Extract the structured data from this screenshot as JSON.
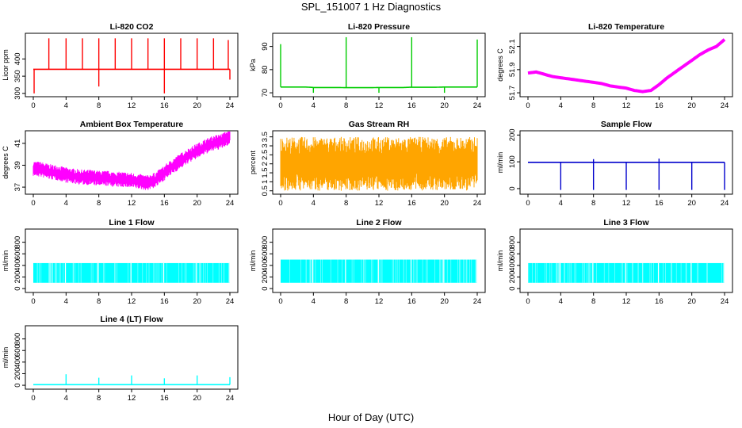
{
  "title": "SPL_151007  1 Hz Diagnostics",
  "xlabel": "Hour of Day (UTC)",
  "chart_data": [
    {
      "type": "line",
      "title": "Li-820 CO2",
      "ylabel": "Licor ppm",
      "color": "#ff0000",
      "xlim": [
        0,
        24
      ],
      "ylim": [
        295,
        470
      ],
      "xticks": [
        0,
        4,
        8,
        12,
        16,
        20,
        24
      ],
      "yticks": [
        300,
        350,
        400
      ],
      "series": [
        {
          "kind": "spiky",
          "x": [
            0,
            0.5,
            1,
            1.5,
            2,
            2.5,
            3,
            3.5,
            4,
            4.5,
            5,
            5.5,
            6,
            6.5,
            7,
            7.5,
            8,
            8.5,
            9,
            9.5,
            10,
            10.5,
            11,
            11.5,
            12,
            12.5,
            13,
            13.5,
            14,
            14.5,
            15,
            15.5,
            16,
            16.5,
            17,
            17.5,
            18,
            18.5,
            19,
            19.5,
            20,
            20.5,
            21,
            21.5,
            22,
            22.5,
            23,
            23.5,
            24
          ],
          "y": [
            370,
            370,
            370,
            370,
            370,
            370,
            370,
            370,
            370,
            370,
            370,
            370,
            370,
            370,
            370,
            370,
            370,
            370,
            370,
            370,
            370,
            370,
            370,
            370,
            370,
            370,
            370,
            370,
            370,
            370,
            370,
            370,
            370,
            370,
            370,
            370,
            370,
            370,
            370,
            370,
            370,
            370,
            370,
            370,
            370,
            370,
            370,
            370,
            370
          ],
          "spikes_up": [
            [
              1.9,
              460
            ],
            [
              4.0,
              460
            ],
            [
              6.0,
              460
            ],
            [
              8.0,
              460
            ],
            [
              10.0,
              460
            ],
            [
              12.0,
              460
            ],
            [
              14.0,
              460
            ],
            [
              16.0,
              460
            ],
            [
              18.0,
              460
            ],
            [
              20.0,
              460
            ],
            [
              22.0,
              460
            ],
            [
              23.8,
              455
            ]
          ],
          "spikes_down": [
            [
              0.1,
              300
            ],
            [
              8.0,
              320
            ],
            [
              16.0,
              300
            ],
            [
              24.0,
              340
            ]
          ]
        }
      ]
    },
    {
      "type": "line",
      "title": "Li-820 Pressure",
      "ylabel": "kPa",
      "color": "#00cc00",
      "xlim": [
        0,
        24
      ],
      "ylim": [
        69,
        95
      ],
      "xticks": [
        0,
        4,
        8,
        12,
        16,
        20,
        24
      ],
      "yticks": [
        70,
        80,
        90
      ],
      "series": [
        {
          "kind": "spiky",
          "x": [
            0,
            1,
            2,
            3,
            4,
            5,
            6,
            7,
            8,
            9,
            10,
            11,
            12,
            13,
            14,
            15,
            16,
            17,
            18,
            19,
            20,
            21,
            22,
            23,
            24
          ],
          "y": [
            72.5,
            72.5,
            72.5,
            72.5,
            72.3,
            72.3,
            72.3,
            72.3,
            72.2,
            72.2,
            72.2,
            72.2,
            72.3,
            72.3,
            72.3,
            72.3,
            72.4,
            72.4,
            72.4,
            72.4,
            72.5,
            72.5,
            72.5,
            72.5,
            72.5
          ],
          "spikes_up": [
            [
              0.0,
              91
            ],
            [
              8.0,
              94
            ],
            [
              16.0,
              94
            ],
            [
              24.0,
              93
            ]
          ],
          "spikes_down": [
            [
              4.0,
              70
            ],
            [
              12.0,
              70
            ],
            [
              20.0,
              70
            ]
          ]
        }
      ]
    },
    {
      "type": "line",
      "title": "Li-820 Temperature",
      "ylabel": "degrees C",
      "color": "#ff00ff",
      "xlim": [
        0,
        24
      ],
      "ylim": [
        51.68,
        52.2
      ],
      "xticks": [
        0,
        4,
        8,
        12,
        16,
        20,
        24
      ],
      "yticks": [
        51.7,
        51.9,
        52.1
      ],
      "series": [
        {
          "kind": "thick",
          "x": [
            0,
            1,
            2,
            3,
            4,
            5,
            6,
            7,
            8,
            9,
            10,
            11,
            12,
            13,
            14,
            15,
            16,
            17,
            18,
            19,
            20,
            21,
            22,
            23,
            24
          ],
          "y": [
            51.87,
            51.88,
            51.86,
            51.84,
            51.83,
            51.82,
            51.81,
            51.8,
            51.79,
            51.78,
            51.76,
            51.75,
            51.74,
            51.72,
            51.71,
            51.72,
            51.77,
            51.83,
            51.88,
            51.93,
            51.98,
            52.03,
            52.07,
            52.1,
            52.16
          ]
        }
      ]
    },
    {
      "type": "line",
      "title": "Ambient Box Temperature",
      "ylabel": "degrees C",
      "color": "#ff00ff",
      "xlim": [
        0,
        24
      ],
      "ylim": [
        36.5,
        42
      ],
      "xticks": [
        0,
        4,
        8,
        12,
        16,
        20,
        24
      ],
      "yticks": [
        37,
        39,
        41
      ],
      "series": [
        {
          "kind": "band",
          "x": [
            0,
            1,
            2,
            3,
            4,
            5,
            6,
            7,
            8,
            9,
            10,
            11,
            12,
            13,
            14,
            15,
            16,
            17,
            18,
            19,
            20,
            21,
            22,
            23,
            24
          ],
          "y": [
            38.7,
            38.6,
            38.4,
            38.3,
            38.1,
            38.0,
            37.9,
            37.9,
            37.8,
            37.8,
            37.7,
            37.7,
            37.6,
            37.5,
            37.4,
            37.7,
            38.3,
            38.9,
            39.4,
            39.9,
            40.3,
            40.7,
            41.0,
            41.2,
            41.6
          ],
          "band": 0.7
        }
      ]
    },
    {
      "type": "line",
      "title": "Gas Stream RH",
      "ylabel": "percent",
      "color": "#ffa500",
      "xlim": [
        0,
        24
      ],
      "ylim": [
        0.4,
        3.75
      ],
      "xticks": [
        0,
        4,
        8,
        12,
        16,
        20,
        24
      ],
      "yticks": [
        0.5,
        1.0,
        1.5,
        2.0,
        2.5,
        3.0,
        3.5
      ],
      "series": [
        {
          "kind": "band",
          "x": [
            0,
            2,
            4,
            6,
            8,
            10,
            12,
            14,
            16,
            18,
            20,
            22,
            24
          ],
          "y": [
            2.0,
            2.0,
            2.0,
            2.0,
            2.0,
            2.0,
            2.0,
            2.0,
            2.0,
            2.0,
            2.0,
            2.0,
            2.0
          ],
          "band": 1.5
        }
      ]
    },
    {
      "type": "line",
      "title": "Sample Flow",
      "ylabel": "ml/min",
      "color": "#0000cc",
      "xlim": [
        0,
        24
      ],
      "ylim": [
        -15,
        210
      ],
      "xticks": [
        0,
        4,
        8,
        12,
        16,
        20,
        24
      ],
      "yticks": [
        0,
        100,
        200
      ],
      "series": [
        {
          "kind": "spiky",
          "x": [
            0,
            2,
            4,
            6,
            8,
            10,
            12,
            14,
            16,
            18,
            20,
            22,
            24
          ],
          "y": [
            98,
            98,
            98,
            98,
            98,
            98,
            98,
            98,
            98,
            98,
            98,
            98,
            98
          ],
          "spikes_up": [
            [
              8.0,
              110
            ],
            [
              16.0,
              112
            ]
          ],
          "spikes_down": [
            [
              4.0,
              -5
            ],
            [
              8.0,
              -5
            ],
            [
              12.0,
              -5
            ],
            [
              16.0,
              -5
            ],
            [
              20.0,
              -5
            ],
            [
              24.0,
              -5
            ]
          ]
        }
      ]
    },
    {
      "type": "line",
      "title": "Line 1 Flow",
      "ylabel": "ml/min",
      "color": "#00ffff",
      "xlim": [
        0,
        24
      ],
      "ylim": [
        -40,
        1000
      ],
      "xticks": [
        0,
        4,
        8,
        12,
        16,
        20,
        24
      ],
      "yticks": [
        0,
        200,
        400,
        600,
        800
      ],
      "series": [
        {
          "kind": "block",
          "x": [
            0,
            24
          ],
          "low": 100,
          "high": 440,
          "gaps": [
            4,
            8,
            12,
            16,
            20,
            24
          ]
        }
      ]
    },
    {
      "type": "line",
      "title": "Line 2 Flow",
      "ylabel": "ml/min",
      "color": "#00ffff",
      "xlim": [
        0,
        24
      ],
      "ylim": [
        -40,
        1000
      ],
      "xticks": [
        0,
        4,
        8,
        12,
        16,
        20,
        24
      ],
      "yticks": [
        0,
        200,
        400,
        600,
        800
      ],
      "series": [
        {
          "kind": "block",
          "x": [
            0,
            24
          ],
          "low": 100,
          "high": 500,
          "gaps": [
            4,
            8,
            12,
            16,
            20,
            24
          ]
        }
      ]
    },
    {
      "type": "line",
      "title": "Line 3 Flow",
      "ylabel": "ml/min",
      "color": "#00ffff",
      "xlim": [
        0,
        24
      ],
      "ylim": [
        -40,
        1000
      ],
      "xticks": [
        0,
        4,
        8,
        12,
        16,
        20,
        24
      ],
      "yticks": [
        0,
        200,
        400,
        600,
        800
      ],
      "series": [
        {
          "kind": "block",
          "x": [
            0,
            24
          ],
          "low": 100,
          "high": 440,
          "gaps": [
            4,
            8,
            12,
            16,
            20,
            24
          ]
        }
      ]
    },
    {
      "type": "line",
      "title": "Line 4 (LT) Flow",
      "ylabel": "ml/min",
      "color": "#00ffff",
      "xlim": [
        0,
        24
      ],
      "ylim": [
        -40,
        1000
      ],
      "xticks": [
        0,
        4,
        8,
        12,
        16,
        20,
        24
      ],
      "yticks": [
        0,
        200,
        400,
        600,
        800
      ],
      "series": [
        {
          "kind": "spiky",
          "x": [
            0,
            4,
            8,
            12,
            16,
            20,
            24
          ],
          "y": [
            10,
            10,
            10,
            10,
            10,
            10,
            10
          ],
          "spikes_up": [
            [
              4.0,
              190
            ],
            [
              8.0,
              130
            ],
            [
              12.0,
              170
            ],
            [
              16.0,
              120
            ],
            [
              20.0,
              170
            ],
            [
              24.0,
              140
            ]
          ],
          "spikes_down": []
        }
      ]
    }
  ]
}
